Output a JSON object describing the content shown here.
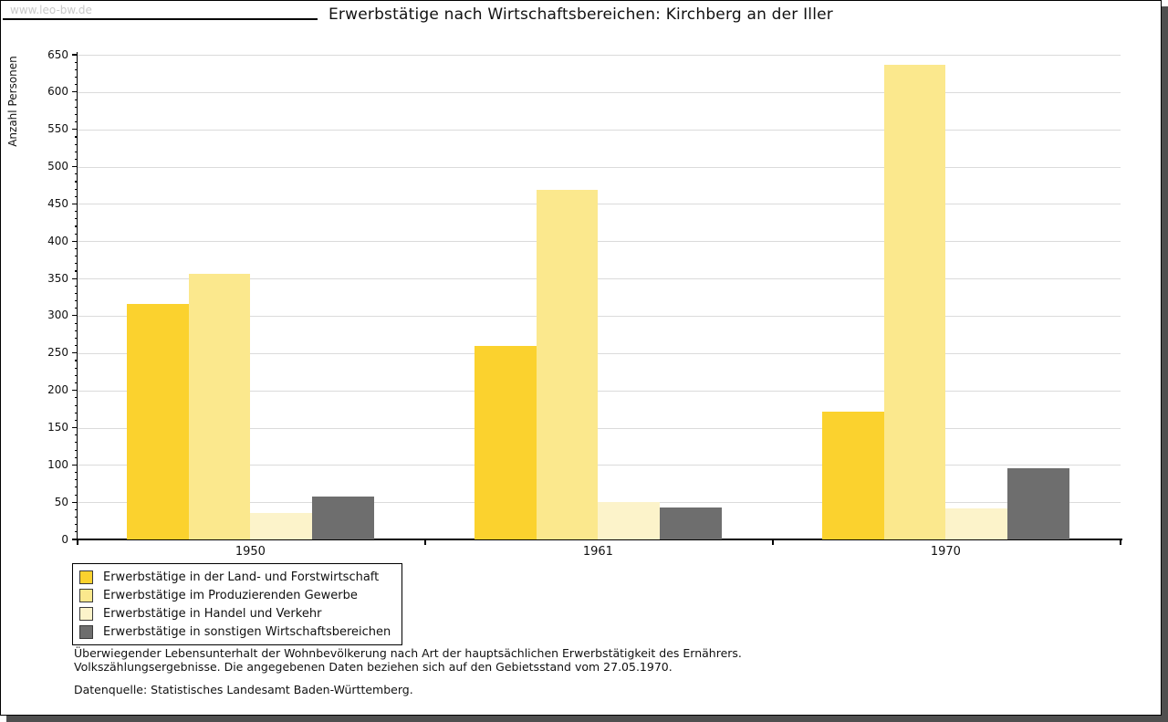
{
  "watermark": "www.leo-bw.de",
  "title": "Erwerbstätige nach Wirtschaftsbereichen: Kirchberg an der Iller",
  "chart_data": {
    "type": "bar",
    "title": "Erwerbstätige nach Wirtschaftsbereichen: Kirchberg an der Iller",
    "xlabel": "",
    "ylabel": "Anzahl Personen",
    "ylim": [
      0,
      650
    ],
    "ytick_step": 50,
    "yminor_step": 10,
    "grid": true,
    "legend_position": "bottom-left",
    "categories": [
      "1950",
      "1961",
      "1970"
    ],
    "series": [
      {
        "name": "Erwerbstätige in der Land- und Forstwirtschaft",
        "color": "#FBD22E",
        "values": [
          316,
          260,
          172
        ]
      },
      {
        "name": "Erwerbstätige im Produzierenden Gewerbe",
        "color": "#FBE88D",
        "values": [
          356,
          469,
          637
        ]
      },
      {
        "name": "Erwerbstätige in Handel und Verkehr",
        "color": "#FCF3CA",
        "values": [
          35,
          50,
          42
        ]
      },
      {
        "name": "Erwerbstätige in sonstigen Wirtschaftsbereichen",
        "color": "#6E6E6E",
        "values": [
          58,
          43,
          95
        ]
      }
    ]
  },
  "footnote": {
    "line1": "Überwiegender Lebensunterhalt der Wohnbevölkerung nach Art der hauptsächlichen Erwerbstätigkeit des Ernährers.",
    "line2": "Volkszählungsergebnisse. Die angegebenen Daten beziehen sich auf den Gebietsstand vom 27.05.1970.",
    "source": "Datenquelle: Statistisches Landesamt Baden-Württemberg."
  },
  "frame": {
    "shadow_color": "#4F4F4F",
    "border_color": "#000000",
    "gridline_color": "#DBDBDB",
    "watermark_color": "#C9C9C9"
  }
}
